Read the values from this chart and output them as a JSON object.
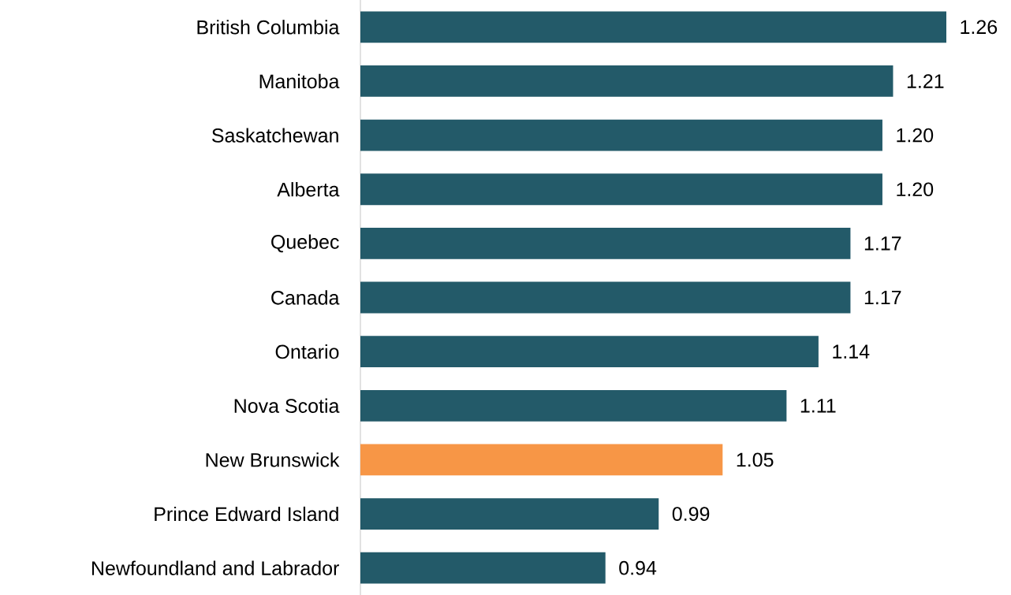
{
  "chart_data": {
    "type": "bar",
    "orientation": "horizontal",
    "categories": [
      "British Columbia",
      "Manitoba",
      "Saskatchewan",
      "Alberta",
      "Quebec",
      "Canada",
      "Ontario",
      "Nova Scotia",
      "New Brunswick",
      "Prince Edward Island",
      "Newfoundland and Labrador"
    ],
    "values": [
      1.26,
      1.21,
      1.2,
      1.2,
      1.17,
      1.17,
      1.14,
      1.11,
      1.05,
      0.99,
      0.94
    ],
    "value_labels": [
      "1.26",
      "1.21",
      "1.20",
      "1.20",
      "1.17",
      "1.17",
      "1.14",
      "1.11",
      "1.05",
      "0.99",
      "0.94"
    ],
    "colors": [
      "#235a69",
      "#235a69",
      "#235a69",
      "#235a69",
      "#235a69",
      "#235a69",
      "#235a69",
      "#235a69",
      "#f79646",
      "#235a69",
      "#235a69"
    ],
    "xlim": [
      0.71,
      1.26
    ]
  }
}
